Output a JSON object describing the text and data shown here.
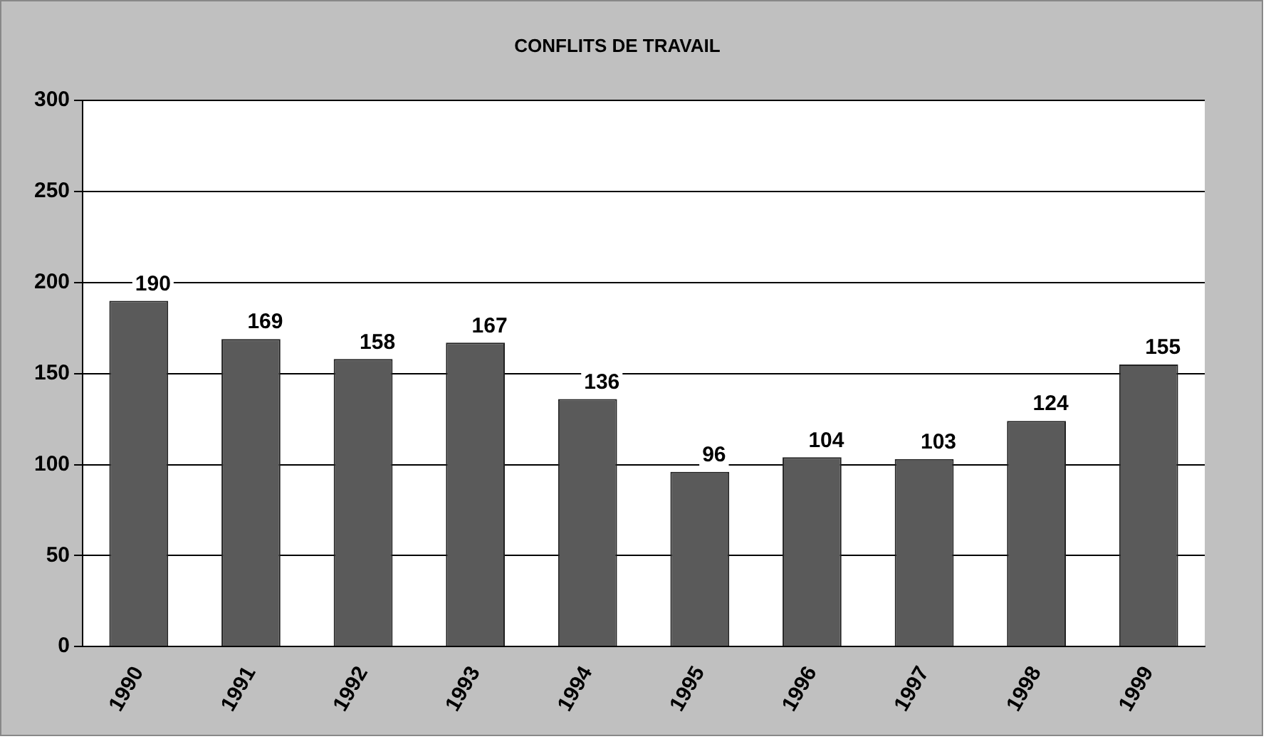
{
  "chart_data": {
    "type": "bar",
    "title": "CONFLITS DE TRAVAIL",
    "categories": [
      "1990",
      "1991",
      "1992",
      "1993",
      "1994",
      "1995",
      "1996",
      "1997",
      "1998",
      "1999"
    ],
    "values": [
      190,
      169,
      158,
      167,
      136,
      96,
      104,
      103,
      124,
      155
    ],
    "color": "#5a5a5a",
    "ylim": [
      0,
      300
    ],
    "yticks": [
      0,
      50,
      100,
      150,
      200,
      250,
      300
    ],
    "grid": "y",
    "data_labels": true,
    "legend": false
  }
}
